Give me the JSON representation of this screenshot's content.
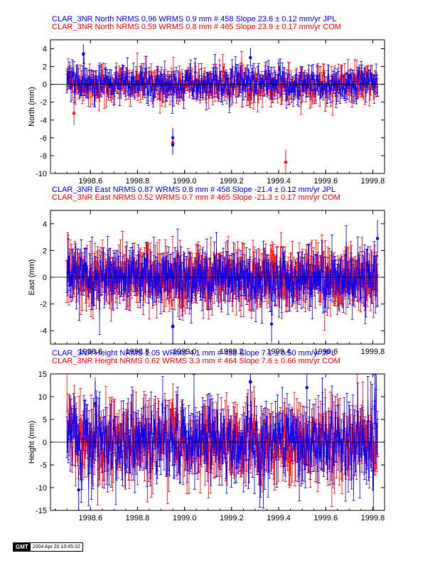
{
  "chart_data": [
    {
      "type": "scatter",
      "component": "north",
      "title_lines": [
        {
          "text": "CLAR_3NR North NRMS 0.96 WRMS  0.9 mm # 458 Slope   23.6 ±  0.12 mm/yr JPL",
          "color": "#0000ff"
        },
        {
          "text": "CLAR_3NR North NRMS 0.59 WRMS  0.8 mm # 465 Slope   23.9 ±  0.17 mm/yr COM",
          "color": "#ff0000"
        }
      ],
      "ylabel": "North (mm)",
      "xlim": [
        1998.43,
        1999.85
      ],
      "ylim": [
        -10,
        5
      ],
      "xticks": [
        "1998.6",
        "1998.8",
        "1999.0",
        "1999.2",
        "1999.4",
        "1999.6",
        "1999.8"
      ],
      "xtick_values": [
        1998.6,
        1998.8,
        1999.0,
        1999.2,
        1999.4,
        1999.6,
        1999.8
      ],
      "yticks": [
        "4",
        "2",
        "0",
        "-2",
        "-4",
        "-6",
        "-8",
        "-10"
      ],
      "ytick_values": [
        4,
        2,
        0,
        -2,
        -4,
        -6,
        -8,
        -10
      ],
      "series": [
        {
          "color": "#0000ff",
          "n": 458,
          "x_start": 1998.5,
          "x_end": 1999.82,
          "noise": 0.9,
          "err": 0.8,
          "outliers": [
            [
              1998.95,
              -6.0
            ],
            [
              1998.95,
              -6.8
            ],
            [
              1999.28,
              3.0
            ],
            [
              1998.57,
              3.4
            ]
          ]
        },
        {
          "color": "#ff0000",
          "n": 465,
          "x_start": 1998.5,
          "x_end": 1999.82,
          "noise": 0.8,
          "err": 1.0,
          "outliers": [
            [
              1998.95,
              -6.5
            ],
            [
              1999.43,
              -8.7
            ],
            [
              1998.53,
              -3.2
            ]
          ]
        }
      ]
    },
    {
      "type": "scatter",
      "component": "east",
      "title_lines": [
        {
          "text": "CLAR_3NR East NRMS 0.87 WRMS  0.8 mm # 458 Slope  -21.4 ±  0.12 mm/yr JPL",
          "color": "#0000ff"
        },
        {
          "text": "CLAR_3NR East NRMS 0.52 WRMS  0.7 mm # 465 Slope  -21.3 ±  0.17 mm/yr COM",
          "color": "#ff0000"
        }
      ],
      "ylabel": "East (mm)",
      "xlim": [
        1998.43,
        1999.85
      ],
      "ylim": [
        -5,
        5
      ],
      "xticks": [
        "1998.6",
        "1998.8",
        "1999.0",
        "1999.2",
        "1999.4",
        "1999.6",
        "1999.8"
      ],
      "xtick_values": [
        1998.6,
        1998.8,
        1999.0,
        1999.2,
        1999.4,
        1999.6,
        1999.8
      ],
      "yticks": [
        "4",
        "2",
        "0",
        "-2",
        "-4"
      ],
      "ytick_values": [
        4,
        2,
        0,
        -2,
        -4
      ],
      "series": [
        {
          "color": "#0000ff",
          "n": 458,
          "x_start": 1998.5,
          "x_end": 1999.82,
          "noise": 0.8,
          "err": 1.0,
          "outliers": [
            [
              1998.95,
              -3.7
            ],
            [
              1999.37,
              -3.5
            ],
            [
              1999.82,
              2.9
            ]
          ]
        },
        {
          "color": "#ff0000",
          "n": 465,
          "x_start": 1998.5,
          "x_end": 1999.82,
          "noise": 0.7,
          "err": 1.4,
          "outliers": [
            [
              1998.95,
              -3.6
            ]
          ]
        }
      ]
    },
    {
      "type": "scatter",
      "component": "height",
      "title_lines": [
        {
          "text": "CLAR_3NR Height NRMS 1.05 WRMS  4.1 mm # 458 Slope    7.1 ±  0.50 mm/yr JPL",
          "color": "#0000ff"
        },
        {
          "text": "CLAR_3NR Height NRMS 0.62 WRMS  3.3 mm # 464 Slope    7.6 ±  0.66 mm/yr COM",
          "color": "#ff0000"
        }
      ],
      "ylabel": "Height (mm)",
      "xlim": [
        1998.43,
        1999.85
      ],
      "ylim": [
        -15,
        15
      ],
      "xticks": [
        "1998.6",
        "1998.8",
        "1999.0",
        "1999.2",
        "1999.4",
        "1999.6",
        "1999.8"
      ],
      "xtick_values": [
        1998.6,
        1998.8,
        1999.0,
        1999.2,
        1999.4,
        1999.6,
        1999.8
      ],
      "yticks": [
        "15",
        "10",
        "5",
        "0",
        "-5",
        "-10",
        "-15"
      ],
      "ytick_values": [
        15,
        10,
        5,
        0,
        -5,
        -10,
        -15
      ],
      "series": [
        {
          "color": "#0000ff",
          "n": 458,
          "x_start": 1998.5,
          "x_end": 1999.82,
          "noise": 4.1,
          "err": 3.5,
          "outliers": [
            [
              1998.62,
              8.5
            ],
            [
              1999.28,
              13.2
            ],
            [
              1999.52,
              12.0
            ],
            [
              1998.55,
              -10.5
            ]
          ]
        },
        {
          "color": "#ff0000",
          "n": 464,
          "x_start": 1998.5,
          "x_end": 1999.82,
          "noise": 3.3,
          "err": 4.5,
          "outliers": [
            [
              1998.62,
              8.0
            ],
            [
              1999.28,
              13.5
            ]
          ]
        }
      ]
    }
  ],
  "stamp": {
    "logo": "GMT",
    "date": "2004 Apr 20 10:45:10"
  }
}
